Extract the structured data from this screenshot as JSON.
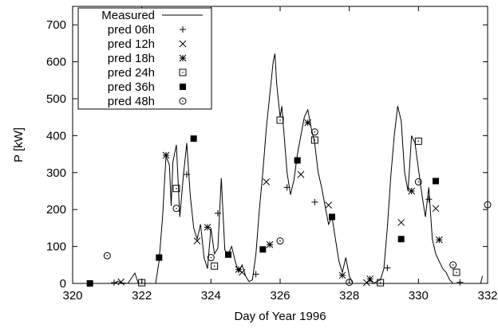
{
  "chart_data": {
    "type": "scatter",
    "xlabel": "Day of Year 1996",
    "ylabel": "P [kW]",
    "xlim": [
      320,
      332
    ],
    "ylim": [
      0,
      750
    ],
    "xticks": [
      320,
      322,
      324,
      326,
      328,
      330,
      332
    ],
    "yticks": [
      0,
      100,
      200,
      300,
      400,
      500,
      600,
      700
    ],
    "grid": false,
    "legend_placement": "top-left",
    "series": [
      {
        "name": "Measured",
        "style": "line",
        "points": [
          [
            320.4,
            0
          ],
          [
            321.2,
            0
          ],
          [
            321.3,
            6
          ],
          [
            321.4,
            2
          ],
          [
            321.6,
            0
          ],
          [
            321.8,
            28
          ],
          [
            321.9,
            0
          ],
          [
            322.4,
            0
          ],
          [
            322.5,
            60
          ],
          [
            322.6,
            180
          ],
          [
            322.7,
            345
          ],
          [
            322.8,
            320
          ],
          [
            322.85,
            210
          ],
          [
            322.9,
            330
          ],
          [
            323.0,
            375
          ],
          [
            323.1,
            180
          ],
          [
            323.2,
            290
          ],
          [
            323.3,
            380
          ],
          [
            323.4,
            240
          ],
          [
            323.5,
            150
          ],
          [
            323.6,
            120
          ],
          [
            323.7,
            160
          ],
          [
            323.8,
            70
          ],
          [
            323.9,
            40
          ],
          [
            324.0,
            150
          ],
          [
            324.1,
            80
          ],
          [
            324.2,
            95
          ],
          [
            324.3,
            285
          ],
          [
            324.4,
            90
          ],
          [
            324.5,
            80
          ],
          [
            324.6,
            100
          ],
          [
            324.7,
            60
          ],
          [
            324.8,
            30
          ],
          [
            324.9,
            50
          ],
          [
            325.0,
            20
          ],
          [
            325.1,
            5
          ],
          [
            325.2,
            10
          ],
          [
            325.3,
            80
          ],
          [
            325.4,
            200
          ],
          [
            325.5,
            300
          ],
          [
            325.6,
            420
          ],
          [
            325.7,
            510
          ],
          [
            325.8,
            600
          ],
          [
            325.85,
            622
          ],
          [
            325.9,
            540
          ],
          [
            326.0,
            450
          ],
          [
            326.05,
            480
          ],
          [
            326.1,
            420
          ],
          [
            326.2,
            300
          ],
          [
            326.3,
            240
          ],
          [
            326.4,
            280
          ],
          [
            326.5,
            350
          ],
          [
            326.6,
            400
          ],
          [
            326.7,
            450
          ],
          [
            326.8,
            470
          ],
          [
            326.9,
            420
          ],
          [
            327.0,
            380
          ],
          [
            327.1,
            300
          ],
          [
            327.2,
            260
          ],
          [
            327.3,
            210
          ],
          [
            327.4,
            160
          ],
          [
            327.5,
            180
          ],
          [
            327.6,
            120
          ],
          [
            327.7,
            60
          ],
          [
            327.8,
            30
          ],
          [
            327.9,
            70
          ],
          [
            328.0,
            20
          ],
          [
            328.1,
            0
          ],
          [
            328.5,
            0
          ],
          [
            328.6,
            10
          ],
          [
            328.7,
            0
          ],
          [
            328.8,
            5
          ],
          [
            328.9,
            10
          ],
          [
            329.0,
            40
          ],
          [
            329.1,
            150
          ],
          [
            329.2,
            290
          ],
          [
            329.3,
            400
          ],
          [
            329.4,
            480
          ],
          [
            329.5,
            440
          ],
          [
            329.6,
            300
          ],
          [
            329.7,
            250
          ],
          [
            329.8,
            400
          ],
          [
            329.9,
            380
          ],
          [
            330.0,
            310
          ],
          [
            330.1,
            240
          ],
          [
            330.2,
            180
          ],
          [
            330.3,
            260
          ],
          [
            330.4,
            120
          ],
          [
            330.5,
            80
          ],
          [
            330.6,
            60
          ],
          [
            330.7,
            40
          ],
          [
            330.8,
            30
          ],
          [
            330.9,
            10
          ],
          [
            331.0,
            0
          ],
          [
            331.8,
            0
          ],
          [
            331.85,
            20
          ]
        ]
      },
      {
        "name": "pred 06h",
        "marker": "plus",
        "points": [
          [
            321.2,
            2
          ],
          [
            323.3,
            295
          ],
          [
            324.2,
            190
          ],
          [
            325.3,
            25
          ],
          [
            326.2,
            260
          ],
          [
            327.0,
            220
          ],
          [
            329.1,
            42
          ],
          [
            330.3,
            228
          ],
          [
            331.2,
            3
          ]
        ]
      },
      {
        "name": "pred 12h",
        "marker": "x",
        "points": [
          [
            321.4,
            4
          ],
          [
            323.6,
            115
          ],
          [
            324.9,
            30
          ],
          [
            325.6,
            275
          ],
          [
            326.6,
            295
          ],
          [
            327.4,
            212
          ],
          [
            328.5,
            2
          ],
          [
            329.5,
            165
          ],
          [
            330.5,
            203
          ]
        ]
      },
      {
        "name": "pred 18h",
        "marker": "star",
        "points": [
          [
            322.7,
            347
          ],
          [
            323.9,
            152
          ],
          [
            324.8,
            38
          ],
          [
            325.7,
            105
          ],
          [
            326.8,
            435
          ],
          [
            327.8,
            22
          ],
          [
            328.6,
            12
          ],
          [
            329.8,
            250
          ],
          [
            330.6,
            118
          ]
        ]
      },
      {
        "name": "pred 24h",
        "marker": "square",
        "points": [
          [
            322.0,
            2
          ],
          [
            323.0,
            257
          ],
          [
            324.1,
            47
          ],
          [
            326.0,
            442
          ],
          [
            327.0,
            388
          ],
          [
            328.9,
            2
          ],
          [
            330.0,
            385
          ],
          [
            331.1,
            30
          ]
        ]
      },
      {
        "name": "pred 36h",
        "marker": "filled-square",
        "points": [
          [
            320.5,
            0
          ],
          [
            322.5,
            70
          ],
          [
            323.5,
            392
          ],
          [
            324.5,
            78
          ],
          [
            325.5,
            92
          ],
          [
            326.5,
            333
          ],
          [
            327.5,
            180
          ],
          [
            329.5,
            120
          ],
          [
            330.5,
            277
          ]
        ]
      },
      {
        "name": "pred 48h",
        "marker": "circle",
        "points": [
          [
            321.0,
            75
          ],
          [
            323.0,
            203
          ],
          [
            324.0,
            70
          ],
          [
            326.0,
            115
          ],
          [
            327.0,
            410
          ],
          [
            328.0,
            3
          ],
          [
            330.0,
            275
          ],
          [
            331.0,
            50
          ],
          [
            332.0,
            213
          ]
        ]
      }
    ]
  }
}
